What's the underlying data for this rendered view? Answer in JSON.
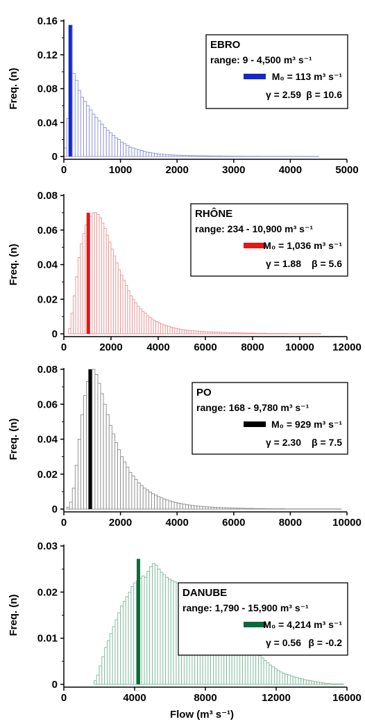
{
  "figure": {
    "xlabel": "Flow (m³ s⁻¹)"
  },
  "chart_data": [
    {
      "type": "bar",
      "river": "EBRO",
      "range_text": "range: 9 - 4,500 m³ s⁻¹",
      "mode_text": "M₀ = 113 m³ s⁻¹",
      "gamma_text": "γ = 2.59",
      "beta_text": "β = 10.6",
      "mode_value": 113,
      "mode_freq": 0.155,
      "color": "#1428c8",
      "light_color": "#8890d8",
      "ylabel": "Freq. (n)",
      "xlim": [
        0,
        5000
      ],
      "ylim": [
        0,
        0.16
      ],
      "xticks": [
        0,
        1000,
        2000,
        3000,
        4000,
        5000
      ],
      "yticks": [
        0,
        0.04,
        0.08,
        0.12,
        0.16
      ],
      "bin_width": 50,
      "bins_start": 0,
      "values": [
        0.01,
        0.045,
        0.155,
        0.098,
        0.09,
        0.078,
        0.07,
        0.065,
        0.06,
        0.055,
        0.05,
        0.046,
        0.042,
        0.038,
        0.034,
        0.031,
        0.028,
        0.025,
        0.022,
        0.02,
        0.017,
        0.015,
        0.013,
        0.011,
        0.01,
        0.009,
        0.008,
        0.007,
        0.006,
        0.005,
        0.0045,
        0.004,
        0.0035,
        0.003,
        0.0028,
        0.0025,
        0.0023,
        0.002,
        0.0018,
        0.0016,
        0.0015,
        0.0014,
        0.0013,
        0.0012,
        0.0011,
        0.001,
        0.001,
        0.0009,
        0.0009,
        0.0008,
        0.0008,
        0.0007,
        0.0007,
        0.0006,
        0.0006,
        0.0006,
        0.0005,
        0.0005,
        0.0005,
        0.0004,
        0.0004,
        0.0004,
        0.0004,
        0.0003,
        0.0003,
        0.0003,
        0.0003,
        0.0003,
        0.0003,
        0.0002,
        0.0002,
        0.0002,
        0.0002,
        0.0002,
        0.0002,
        0.0002,
        0.0002,
        0.0002,
        0.0002,
        0.0002,
        0.0002,
        0.0002,
        0.0002,
        0.0002,
        0.0002,
        0.0002,
        0.0002,
        0.0001,
        0.0001,
        0.0001
      ]
    },
    {
      "type": "bar",
      "river": "RHÔNE",
      "range_text": "range: 234 - 10,900 m³ s⁻¹",
      "mode_text": "M₀ = 1,036 m³ s⁻¹",
      "gamma_text": "γ = 1.88",
      "beta_text": "β = 5.6",
      "mode_value": 1036,
      "mode_freq": 0.07,
      "color": "#e01818",
      "light_color": "#e89090",
      "ylabel": "Freq. (n)",
      "xlim": [
        0,
        12000
      ],
      "ylim": [
        0,
        0.08
      ],
      "xticks": [
        0,
        2000,
        4000,
        6000,
        8000,
        10000,
        12000
      ],
      "yticks": [
        0,
        0.02,
        0.04,
        0.06,
        0.08
      ],
      "bin_width": 100,
      "bins_start": 200,
      "values": [
        0.003,
        0.012,
        0.022,
        0.033,
        0.044,
        0.052,
        0.058,
        0.063,
        0.066,
        0.068,
        0.07,
        0.07,
        0.069,
        0.067,
        0.064,
        0.061,
        0.057,
        0.053,
        0.049,
        0.045,
        0.041,
        0.037,
        0.034,
        0.031,
        0.028,
        0.025,
        0.022,
        0.02,
        0.018,
        0.016,
        0.0145,
        0.013,
        0.012,
        0.0105,
        0.0095,
        0.0085,
        0.0077,
        0.007,
        0.0063,
        0.0057,
        0.0052,
        0.0047,
        0.0043,
        0.0039,
        0.0035,
        0.0032,
        0.0029,
        0.0026,
        0.0024,
        0.0022,
        0.002,
        0.0019,
        0.0018,
        0.0017,
        0.0016,
        0.0015,
        0.0014,
        0.0013,
        0.0012,
        0.0011,
        0.0011,
        0.001,
        0.001,
        0.0009,
        0.0009,
        0.0008,
        0.0008,
        0.0007,
        0.0007,
        0.0006,
        0.0006,
        0.0006,
        0.0005,
        0.0005,
        0.0005,
        0.0004,
        0.0004,
        0.0004,
        0.0004,
        0.0003,
        0.0003,
        0.0003,
        0.0003,
        0.0003,
        0.0002,
        0.0002,
        0.0002,
        0.0002,
        0.0002,
        0.0002,
        0.0002,
        0.0002,
        0.0002,
        0.0001,
        0.0001,
        0.0001,
        0.0001,
        0.0001,
        0.0001,
        0.0001,
        0.0001,
        0.0001,
        0.0001,
        0.0001,
        0.0001,
        0.0001,
        0.0001
      ]
    },
    {
      "type": "bar",
      "river": "PO",
      "range_text": "range: 168 - 9,780 m³ s⁻¹",
      "mode_text": "M₀ = 929 m³ s⁻¹",
      "gamma_text": "γ = 2.30",
      "beta_text": "β = 7.5",
      "mode_value": 929,
      "mode_freq": 0.08,
      "color": "#000000",
      "light_color": "#8a8a8a",
      "ylabel": "Freq. (n)",
      "xlim": [
        0,
        10000
      ],
      "ylim": [
        0,
        0.08
      ],
      "xticks": [
        0,
        2000,
        4000,
        6000,
        8000,
        10000
      ],
      "yticks": [
        0,
        0.02,
        0.04,
        0.06,
        0.08
      ],
      "bin_width": 100,
      "bins_start": 100,
      "values": [
        0.001,
        0.004,
        0.012,
        0.025,
        0.04,
        0.054,
        0.065,
        0.073,
        0.078,
        0.08,
        0.077,
        0.072,
        0.066,
        0.06,
        0.054,
        0.048,
        0.043,
        0.038,
        0.034,
        0.03,
        0.027,
        0.024,
        0.021,
        0.019,
        0.017,
        0.015,
        0.0135,
        0.012,
        0.011,
        0.0098,
        0.0088,
        0.008,
        0.0072,
        0.0065,
        0.0058,
        0.0052,
        0.0047,
        0.0042,
        0.0038,
        0.0034,
        0.0031,
        0.0028,
        0.0025,
        0.0023,
        0.0021,
        0.0019,
        0.0017,
        0.0016,
        0.0014,
        0.0013,
        0.0012,
        0.0011,
        0.001,
        0.0009,
        0.0009,
        0.0008,
        0.0007,
        0.0007,
        0.0006,
        0.0006,
        0.0005,
        0.0005,
        0.0005,
        0.0004,
        0.0004,
        0.0004,
        0.0003,
        0.0003,
        0.0003,
        0.0003,
        0.0002,
        0.0002,
        0.0002,
        0.0002,
        0.0002,
        0.0002,
        0.0002,
        0.0001,
        0.0001,
        0.0001,
        0.0001,
        0.0001,
        0.0001,
        0.0001,
        0.0001,
        0.0001,
        0.0001,
        0.0001,
        0.0001,
        0.0001,
        0.0001,
        0.0001,
        0.0001,
        0.0001,
        0.0001,
        0.0001,
        0.0001
      ]
    },
    {
      "type": "bar",
      "river": "DANUBE",
      "range_text": "range: 1,790 - 15,900 m³ s⁻¹",
      "mode_text": "M₀ = 4,214 m³ s⁻¹",
      "gamma_text": "γ = 0.56",
      "beta_text": "β = -0.2",
      "mode_value": 4214,
      "mode_freq": 0.0272,
      "color": "#0a6a3a",
      "light_color": "#78b898",
      "ylabel": "Freq. (n)",
      "xlim": [
        0,
        16000
      ],
      "ylim": [
        0,
        0.03
      ],
      "xticks": [
        0,
        4000,
        8000,
        12000,
        16000
      ],
      "yticks": [
        0,
        0.01,
        0.02,
        0.03
      ],
      "bin_width": 150,
      "bins_start": 1700,
      "values": [
        0.0008,
        0.002,
        0.004,
        0.006,
        0.008,
        0.0095,
        0.011,
        0.0125,
        0.014,
        0.0155,
        0.017,
        0.018,
        0.019,
        0.02,
        0.0212,
        0.022,
        0.0225,
        0.023,
        0.0235,
        0.0232,
        0.0245,
        0.0255,
        0.0262,
        0.0258,
        0.025,
        0.0243,
        0.0238,
        0.0232,
        0.0228,
        0.0225,
        0.0222,
        0.022,
        0.0218,
        0.0215,
        0.021,
        0.0205,
        0.02,
        0.0198,
        0.0192,
        0.0188,
        0.0183,
        0.0178,
        0.0172,
        0.0168,
        0.0163,
        0.0158,
        0.0153,
        0.0148,
        0.0142,
        0.0137,
        0.0132,
        0.0127,
        0.0122,
        0.0116,
        0.011,
        0.0104,
        0.0098,
        0.0092,
        0.0086,
        0.008,
        0.0074,
        0.0068,
        0.0062,
        0.0057,
        0.0052,
        0.0047,
        0.0042,
        0.0038,
        0.0034,
        0.003,
        0.0027,
        0.0024,
        0.0022,
        0.002,
        0.0018,
        0.0016,
        0.0015,
        0.0013,
        0.0012,
        0.001,
        0.0009,
        0.0008,
        0.0007,
        0.0006,
        0.0005,
        0.0004,
        0.0003,
        0.0002,
        0.0002,
        0.0001,
        0.0001,
        0.0001,
        0.0001,
        0.0001
      ]
    }
  ]
}
